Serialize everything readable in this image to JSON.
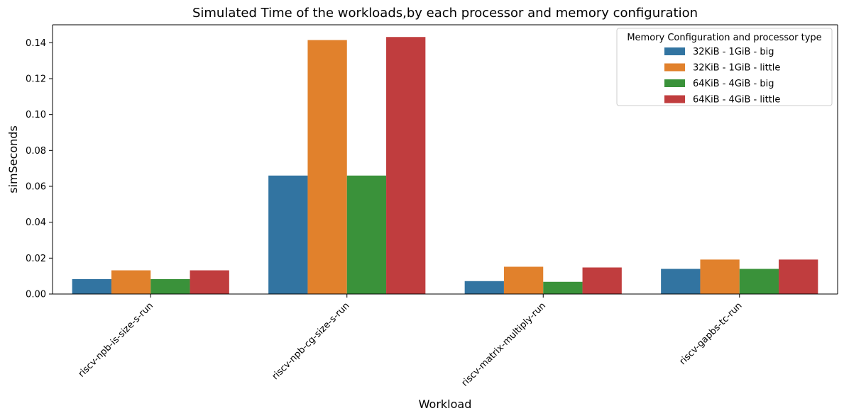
{
  "chart_data": {
    "type": "bar",
    "title": "Simulated Time of the workloads,by each processor and memory configuration",
    "xlabel": "Workload",
    "ylabel": "simSeconds",
    "ylim": [
      0,
      0.15
    ],
    "yticks": [
      "0.00",
      "0.02",
      "0.04",
      "0.06",
      "0.08",
      "0.10",
      "0.12",
      "0.14"
    ],
    "categories": [
      "riscv-npb-is-size-s-run",
      "riscv-npb-cg-size-s-run",
      "riscv-matrix-multiply-run",
      "riscv-gapbs-tc-run"
    ],
    "series": [
      {
        "name": "32KiB - 1GiB - big",
        "color": "#3274a1",
        "values": [
          0.0083,
          0.066,
          0.0072,
          0.014
        ]
      },
      {
        "name": "32KiB - 1GiB - little",
        "color": "#e1812c",
        "values": [
          0.0132,
          0.1415,
          0.0152,
          0.0192
        ]
      },
      {
        "name": "64KiB - 4GiB - big",
        "color": "#3a923a",
        "values": [
          0.0083,
          0.066,
          0.0068,
          0.014
        ]
      },
      {
        "name": "64KiB - 4GiB - little",
        "color": "#c03d3e",
        "values": [
          0.0132,
          0.1432,
          0.0148,
          0.0192
        ]
      }
    ],
    "legend": {
      "title": "Memory Configuration and processor type",
      "placement": "top-right"
    },
    "grid": false
  }
}
